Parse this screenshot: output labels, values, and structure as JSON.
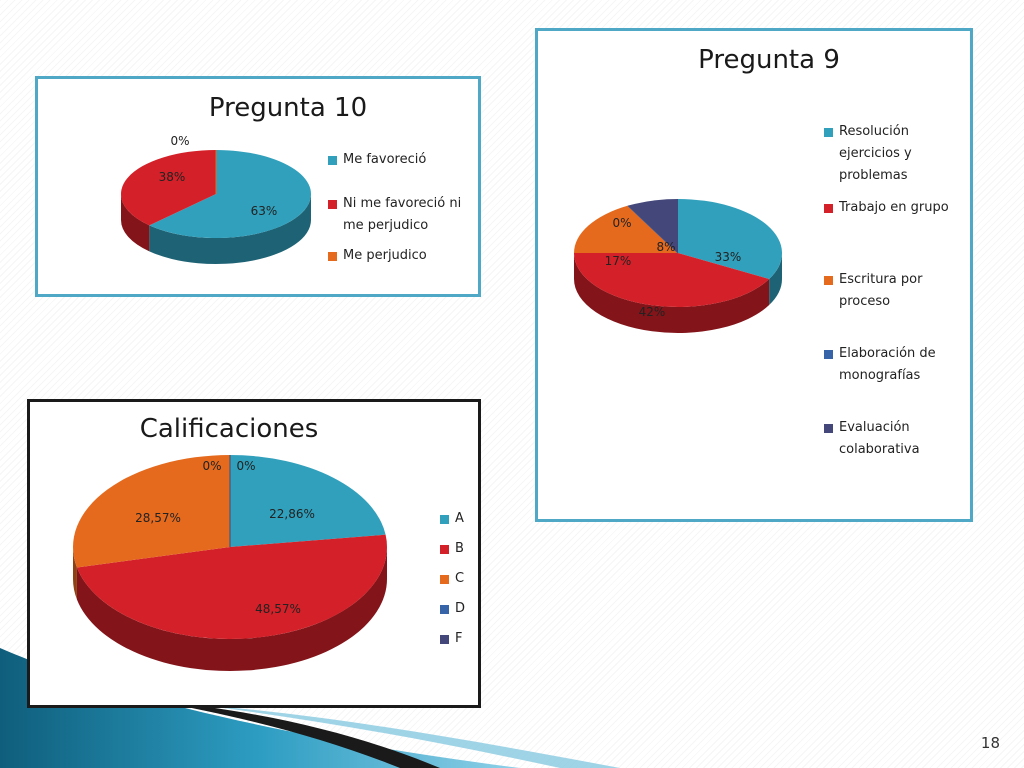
{
  "page_number": "18",
  "colors": {
    "teal": "#31a0bc",
    "red": "#d42129",
    "orange": "#e56a1e",
    "blue": "#3764a9",
    "navy": "#43477a"
  },
  "chart_data": [
    {
      "id": "p10",
      "type": "pie",
      "title": "Pregunta 10",
      "labels": [
        "Me favoreció",
        "Ni me favoreció ni me perjudico",
        "Me perjudico"
      ],
      "values": [
        63,
        38,
        0
      ],
      "value_labels": [
        "63%",
        "38%",
        "0%"
      ],
      "colors": [
        "#31a0bc",
        "#d42129",
        "#e56a1e"
      ],
      "legend": "right"
    },
    {
      "id": "p9",
      "type": "pie",
      "title": "Pregunta 9",
      "labels": [
        "Resolución ejercicios y problemas",
        "Trabajo en grupo",
        "Escritura por proceso",
        "Elaboración de monografías",
        "Evaluación colaborativa"
      ],
      "values": [
        33,
        42,
        17,
        0,
        8
      ],
      "value_labels": [
        "33%",
        "42%",
        "17%",
        "0%",
        "8%"
      ],
      "colors": [
        "#31a0bc",
        "#d42129",
        "#e56a1e",
        "#3764a9",
        "#43477a"
      ],
      "legend": "right"
    },
    {
      "id": "cal",
      "type": "pie",
      "title": "Calificaciones",
      "labels": [
        "A",
        "B",
        "C",
        "D",
        "F"
      ],
      "values": [
        22.86,
        48.57,
        28.57,
        0,
        0
      ],
      "value_labels": [
        "22,86%",
        "48,57%",
        "28,57%",
        "0%",
        "0%"
      ],
      "colors": [
        "#31a0bc",
        "#d42129",
        "#e56a1e",
        "#3764a9",
        "#43477a"
      ],
      "legend": "right"
    }
  ]
}
